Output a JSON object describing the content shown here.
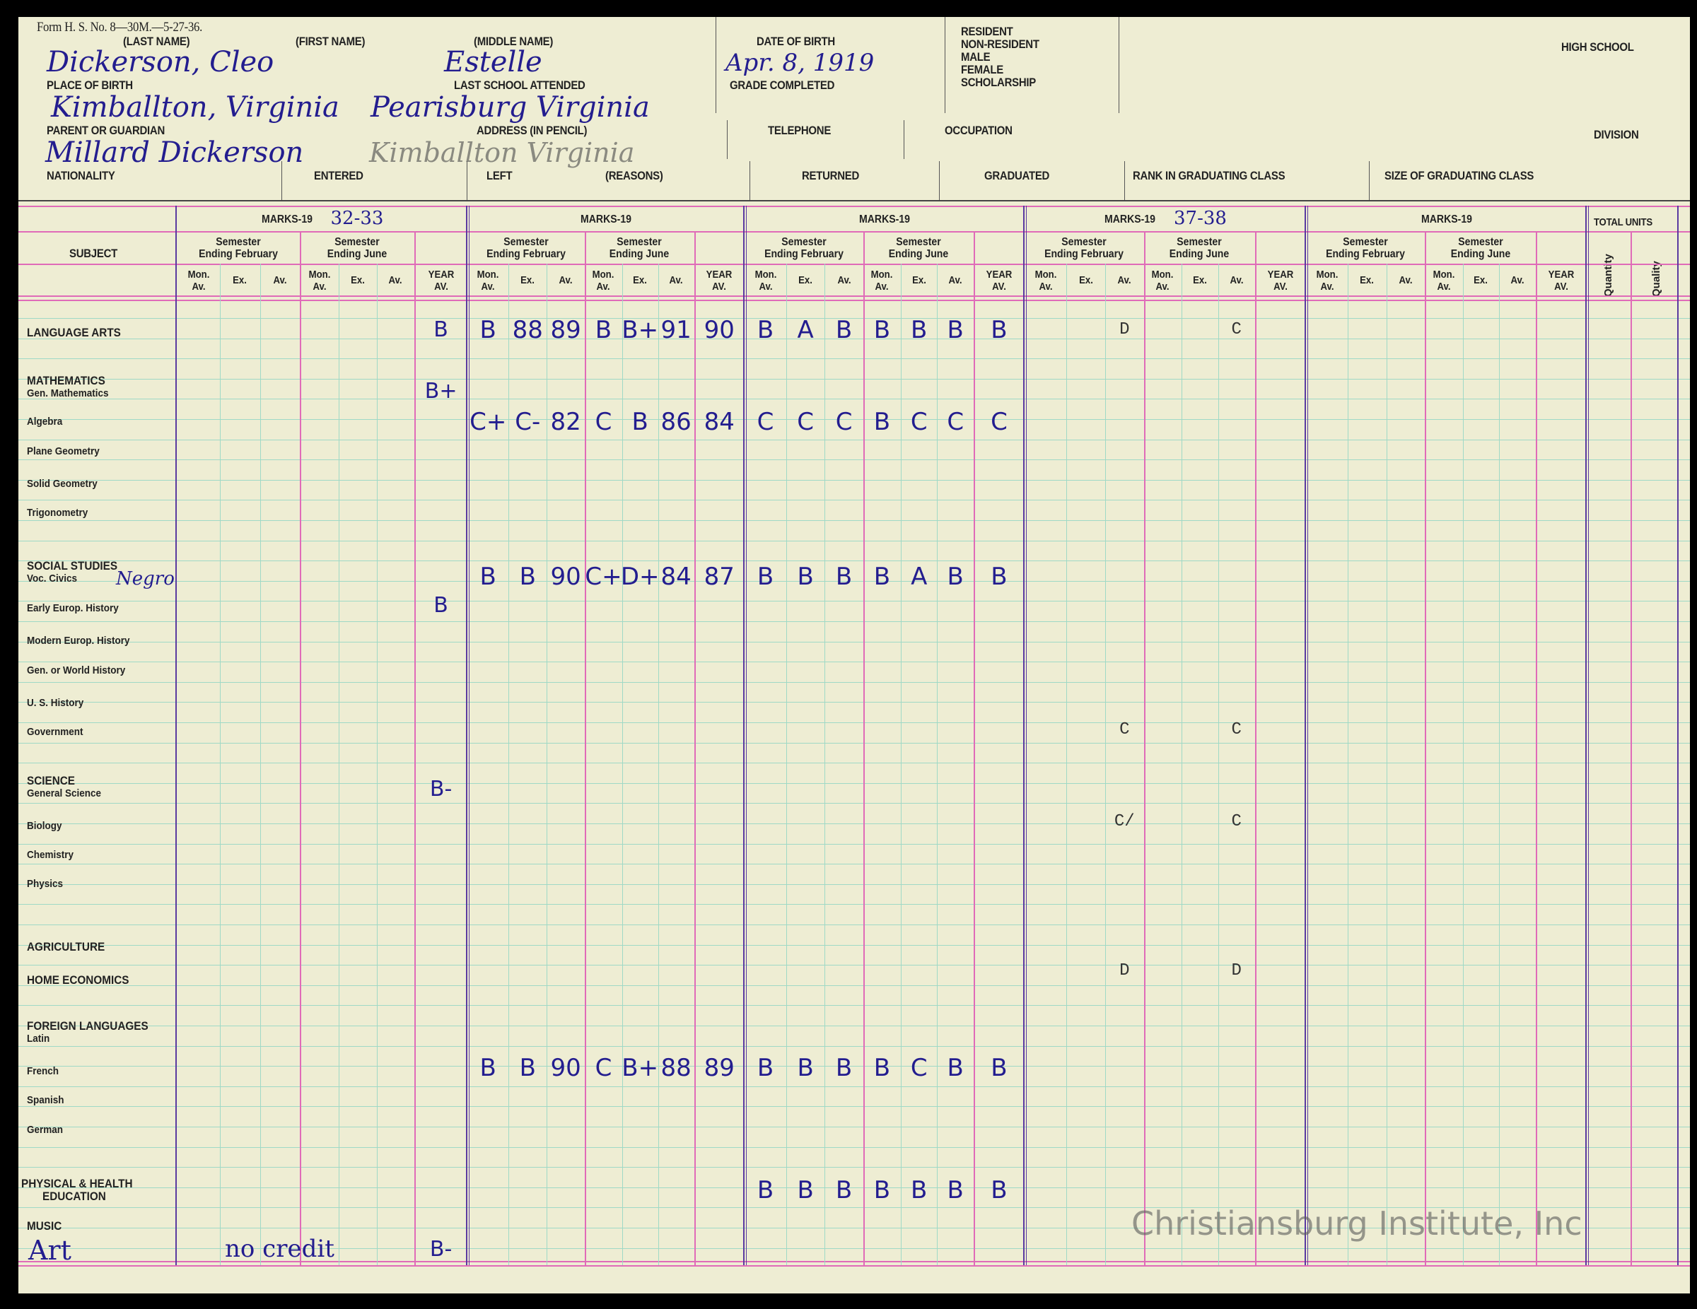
{
  "form": {
    "form_number": "Form H. S. No. 8—30M.—5-27-36.",
    "labels": {
      "last_name": "(LAST NAME)",
      "first_name": "(FIRST NAME)",
      "middle_name": "(MIDDLE NAME)",
      "date_of_birth": "DATE OF BIRTH",
      "place_of_birth": "PLACE OF BIRTH",
      "last_school": "LAST SCHOOL ATTENDED",
      "grade_completed": "GRADE COMPLETED",
      "parent": "PARENT OR GUARDIAN",
      "address": "ADDRESS (IN PENCIL)",
      "telephone": "TELEPHONE",
      "occupation": "OCCUPATION",
      "nationality": "NATIONALITY",
      "entered": "ENTERED",
      "left": "LEFT",
      "reasons": "(REASONS)",
      "returned": "RETURNED",
      "graduated": "GRADUATED",
      "rank": "RANK IN GRADUATING CLASS",
      "size": "SIZE OF GRADUATING CLASS",
      "resident": "RESIDENT",
      "non_resident": "NON-RESIDENT",
      "male": "MALE",
      "female": "FEMALE",
      "scholarship": "SCHOLARSHIP",
      "high_school": "HIGH SCHOOL",
      "division": "DIVISION"
    },
    "values": {
      "name": "Dickerson, Cleo",
      "middle_name": "Estelle",
      "date_of_birth": "Apr. 8, 1919",
      "place_of_birth": "Kimballton, Virginia",
      "last_school": "Pearisburg Virginia",
      "parent": "Millard Dickerson",
      "address": "Kimballton Virginia"
    }
  },
  "table": {
    "subject_header": "SUBJECT",
    "marks_title": "MARKS-19",
    "group_years": [
      "32-33",
      "",
      "",
      "37-38",
      ""
    ],
    "semester_feb": [
      "Semester",
      "Ending February"
    ],
    "semester_june": [
      "Semester",
      "Ending June"
    ],
    "col_mon": [
      "Mon.",
      "Av."
    ],
    "col_ex": "Ex.",
    "col_av": "Av.",
    "col_year": [
      "YEAR",
      "AV."
    ],
    "total_units": "TOTAL UNITS",
    "quantity": "Quantity",
    "quality": "Quality"
  },
  "subjects": [
    "LANGUAGE ARTS",
    "MATHEMATICS",
    "Gen. Mathematics",
    "Algebra",
    "Plane Geometry",
    "Solid Geometry",
    "Trigonometry",
    "SOCIAL STUDIES",
    "Voc. Civics",
    "Early Europ. History",
    "Modern Europ. History",
    "Gen. or World History",
    "U. S. History",
    "Government",
    "SCIENCE",
    "General Science",
    "Biology",
    "Chemistry",
    "Physics",
    "AGRICULTURE",
    "HOME ECONOMICS",
    "FOREIGN LANGUAGES",
    "Latin",
    "French",
    "Spanish",
    "German",
    "PHYSICAL & HEALTH",
    "EDUCATION",
    "MUSIC"
  ],
  "handwritten_subjects": {
    "voc_civics_note": "Negro",
    "art": "Art",
    "art_note": "no credit"
  },
  "marks": [
    {
      "subject": "Language Arts",
      "groups": [
        [
          "",
          "",
          "",
          "",
          "",
          "",
          "B"
        ],
        [
          "B",
          "88",
          "89",
          "B",
          "B+",
          "91",
          "90"
        ],
        [
          "B",
          "A",
          "B",
          "B",
          "B",
          "B",
          "B"
        ],
        [
          "",
          "",
          "D",
          "",
          "",
          "C",
          ""
        ],
        [
          "",
          "",
          "",
          "",
          "",
          "",
          ""
        ]
      ]
    },
    {
      "subject": "Mathematics",
      "groups": [
        [
          "",
          "",
          "",
          "",
          "",
          "",
          "B+"
        ],
        [
          "",
          "",
          "",
          "",
          "",
          "",
          ""
        ],
        [
          "",
          "",
          "",
          "",
          "",
          "",
          ""
        ],
        [
          "",
          "",
          "",
          "",
          "",
          "",
          ""
        ],
        [
          "",
          "",
          "",
          "",
          "",
          "",
          ""
        ]
      ]
    },
    {
      "subject": "Algebra",
      "groups": [
        [
          "",
          "",
          "",
          "",
          "",
          "",
          ""
        ],
        [
          "C+",
          "C-",
          "82",
          "C",
          "B",
          "86",
          "84"
        ],
        [
          "C",
          "C",
          "C",
          "B",
          "C",
          "C",
          "C"
        ],
        [
          "",
          "",
          "",
          "",
          "",
          "",
          ""
        ],
        [
          "",
          "",
          "",
          "",
          "",
          "",
          ""
        ]
      ]
    },
    {
      "subject": "Social Studies / Voc. Civics",
      "groups": [
        [
          "",
          "",
          "",
          "",
          "",
          "",
          ""
        ],
        [
          "B",
          "B",
          "90",
          "C+",
          "D+",
          "84",
          "87"
        ],
        [
          "B",
          "B",
          "B",
          "B",
          "A",
          "B",
          "B"
        ],
        [
          "",
          "",
          "",
          "",
          "",
          "",
          ""
        ],
        [
          "",
          "",
          "",
          "",
          "",
          "",
          ""
        ]
      ]
    },
    {
      "subject": "Early Europ. History",
      "groups": [
        [
          "",
          "",
          "",
          "",
          "",
          "",
          "B"
        ],
        [
          "",
          "",
          "",
          "",
          "",
          "",
          ""
        ],
        [
          "",
          "",
          "",
          "",
          "",
          "",
          ""
        ],
        [
          "",
          "",
          "",
          "",
          "",
          "",
          ""
        ],
        [
          "",
          "",
          "",
          "",
          "",
          "",
          ""
        ]
      ]
    },
    {
      "subject": "Government",
      "groups": [
        [
          "",
          "",
          "",
          "",
          "",
          "",
          ""
        ],
        [
          "",
          "",
          "",
          "",
          "",
          "",
          ""
        ],
        [
          "",
          "",
          "",
          "",
          "",
          "",
          ""
        ],
        [
          "",
          "",
          "C",
          "",
          "",
          "C",
          ""
        ],
        [
          "",
          "",
          "",
          "",
          "",
          "",
          ""
        ]
      ]
    },
    {
      "subject": "Science",
      "groups": [
        [
          "",
          "",
          "",
          "",
          "",
          "",
          "B-"
        ],
        [
          "",
          "",
          "",
          "",
          "",
          "",
          ""
        ],
        [
          "",
          "",
          "",
          "",
          "",
          "",
          ""
        ],
        [
          "",
          "",
          "",
          "",
          "",
          "",
          ""
        ],
        [
          "",
          "",
          "",
          "",
          "",
          "",
          ""
        ]
      ]
    },
    {
      "subject": "Biology",
      "groups": [
        [
          "",
          "",
          "",
          "",
          "",
          "",
          ""
        ],
        [
          "",
          "",
          "",
          "",
          "",
          "",
          ""
        ],
        [
          "",
          "",
          "",
          "",
          "",
          "",
          ""
        ],
        [
          "",
          "",
          "C/",
          "",
          "",
          "C",
          ""
        ],
        [
          "",
          "",
          "",
          "",
          "",
          "",
          ""
        ]
      ]
    },
    {
      "subject": "Home Economics",
      "groups": [
        [
          "",
          "",
          "",
          "",
          "",
          "",
          ""
        ],
        [
          "",
          "",
          "",
          "",
          "",
          "",
          ""
        ],
        [
          "",
          "",
          "",
          "",
          "",
          "",
          ""
        ],
        [
          "",
          "",
          "D",
          "",
          "",
          "D",
          ""
        ],
        [
          "",
          "",
          "",
          "",
          "",
          "",
          ""
        ]
      ]
    },
    {
      "subject": "French",
      "groups": [
        [
          "",
          "",
          "",
          "",
          "",
          "",
          ""
        ],
        [
          "B",
          "B",
          "90",
          "C",
          "B+",
          "88",
          "89"
        ],
        [
          "B",
          "B",
          "B",
          "B",
          "C",
          "B",
          "B"
        ],
        [
          "",
          "",
          "",
          "",
          "",
          "",
          ""
        ],
        [
          "",
          "",
          "",
          "",
          "",
          "",
          ""
        ]
      ]
    },
    {
      "subject": "Physical & Health Education",
      "groups": [
        [
          "",
          "",
          "",
          "",
          "",
          "",
          ""
        ],
        [
          "",
          "",
          "",
          "",
          "",
          "",
          ""
        ],
        [
          "B",
          "B",
          "B",
          "B",
          "B",
          "B",
          "B"
        ],
        [
          "",
          "",
          "",
          "",
          "",
          "",
          ""
        ],
        [
          "",
          "",
          "",
          "",
          "",
          "",
          ""
        ]
      ]
    },
    {
      "subject": "Art",
      "groups": [
        [
          "",
          "",
          "",
          "",
          "",
          "",
          "B-"
        ],
        [
          "",
          "",
          "",
          "",
          "",
          "",
          ""
        ],
        [
          "",
          "",
          "",
          "",
          "",
          "",
          ""
        ],
        [
          "",
          "",
          "",
          "",
          "",
          "",
          ""
        ],
        [
          "",
          "",
          "",
          "",
          "",
          "",
          ""
        ]
      ]
    }
  ],
  "watermark": "Christiansburg Institute, Inc",
  "colors": {
    "paper": "#eeedd3",
    "ink": "#231d8f",
    "grid_green": "#9fd9c6",
    "grid_pink": "#e06bb8",
    "grid_purple": "#5a3aa0"
  }
}
